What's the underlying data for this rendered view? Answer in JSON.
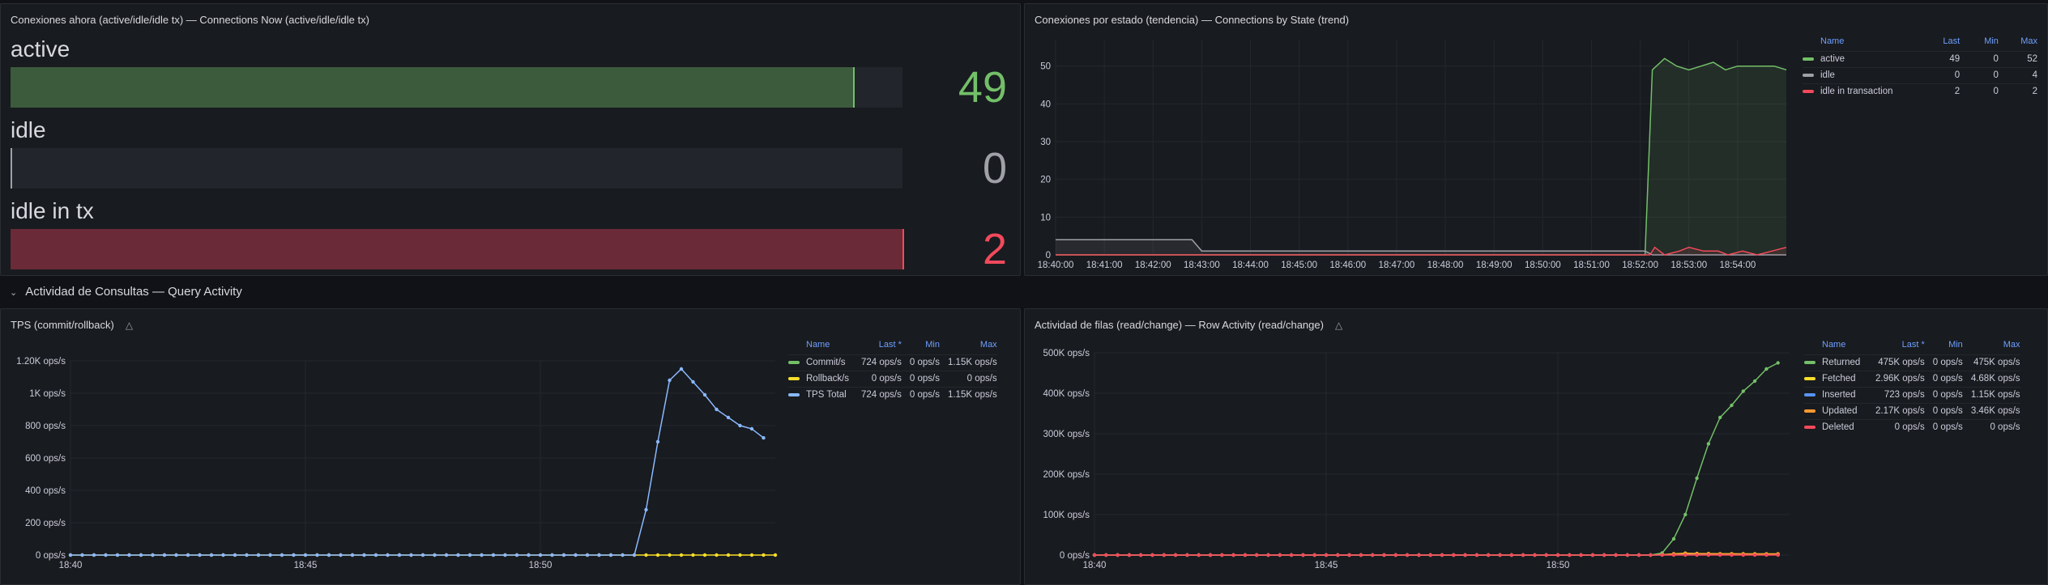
{
  "panels": {
    "now": {
      "title": "Conexiones ahora (active/idle/idle tx) — Connections Now (active/idle/idle tx)",
      "gauges": [
        {
          "label": "active",
          "value": "49",
          "fraction": 0.945,
          "color": "#73bf69",
          "fill": "#3c5b3d"
        },
        {
          "label": "idle",
          "value": "0",
          "fraction": 0.0,
          "color": "#9fa0a8",
          "fill": "#3a3d44"
        },
        {
          "label": "idle in tx",
          "value": "2",
          "fraction": 1.0,
          "color": "#f2495c",
          "fill": "#6a2a37"
        }
      ]
    },
    "state": {
      "title": "Conexiones por estado (tendencia) — Connections by State (trend)",
      "legend": {
        "headers": [
          "Name",
          "Last",
          "Min",
          "Max"
        ],
        "rows": [
          {
            "name": "active",
            "color": "#73bf69",
            "last": "49",
            "min": "0",
            "max": "52"
          },
          {
            "name": "idle",
            "color": "#9fa0a8",
            "last": "0",
            "min": "0",
            "max": "4"
          },
          {
            "name": "idle in transaction",
            "color": "#f2495c",
            "last": "2",
            "min": "0",
            "max": "2"
          }
        ]
      }
    },
    "section": {
      "title": "Actividad de Consultas — Query Activity"
    },
    "tps": {
      "title": "TPS (commit/rollback)",
      "warn_icon": "warning-triangle-icon",
      "legend": {
        "headers": [
          "Name",
          "Last *",
          "Min",
          "Max"
        ],
        "rows": [
          {
            "name": "Commit/s",
            "color": "#73bf69",
            "last": "724 ops/s",
            "min": "0 ops/s",
            "max": "1.15K ops/s"
          },
          {
            "name": "Rollback/s",
            "color": "#fade2a",
            "last": "0 ops/s",
            "min": "0 ops/s",
            "max": "0 ops/s"
          },
          {
            "name": "TPS Total",
            "color": "#8ab8ff",
            "last": "724 ops/s",
            "min": "0 ops/s",
            "max": "1.15K ops/s"
          }
        ]
      }
    },
    "rows": {
      "title": "Actividad de filas (read/change) — Row Activity (read/change)",
      "warn_icon": "warning-triangle-icon",
      "legend": {
        "headers": [
          "Name",
          "Last *",
          "Min",
          "Max"
        ],
        "rows": [
          {
            "name": "Returned",
            "color": "#73bf69",
            "last": "475K ops/s",
            "min": "0 ops/s",
            "max": "475K ops/s"
          },
          {
            "name": "Fetched",
            "color": "#fade2a",
            "last": "2.96K ops/s",
            "min": "0 ops/s",
            "max": "4.68K ops/s"
          },
          {
            "name": "Inserted",
            "color": "#5794f2",
            "last": "723 ops/s",
            "min": "0 ops/s",
            "max": "1.15K ops/s"
          },
          {
            "name": "Updated",
            "color": "#ff9830",
            "last": "2.17K ops/s",
            "min": "0 ops/s",
            "max": "3.46K ops/s"
          },
          {
            "name": "Deleted",
            "color": "#f2495c",
            "last": "0 ops/s",
            "min": "0 ops/s",
            "max": "0 ops/s"
          }
        ]
      }
    }
  },
  "chart_data": [
    {
      "type": "area",
      "title": "Conexiones por estado (tendencia) — Connections by State (trend)",
      "x_ticks": [
        "18:40:00",
        "18:41:00",
        "18:42:00",
        "18:43:00",
        "18:44:00",
        "18:45:00",
        "18:46:00",
        "18:47:00",
        "18:48:00",
        "18:49:00",
        "18:50:00",
        "18:51:00",
        "18:52:00",
        "18:53:00",
        "18:54:00"
      ],
      "y_ticks": [
        "0",
        "10",
        "20",
        "30",
        "40",
        "50"
      ],
      "xlim": [
        0,
        15
      ],
      "ylim": [
        0,
        57
      ],
      "grid": true,
      "series": [
        {
          "name": "active",
          "color": "#73bf69",
          "x": [
            0,
            12.1,
            12.25,
            12.5,
            12.75,
            13,
            13.25,
            13.5,
            13.75,
            14,
            14.25,
            14.5,
            14.75,
            15
          ],
          "values": [
            0,
            0,
            49,
            52,
            50,
            49,
            50,
            51,
            49,
            50,
            50,
            50,
            50,
            49
          ]
        },
        {
          "name": "idle",
          "color": "#9fa0a8",
          "x": [
            0,
            2.8,
            3.0,
            12.1,
            12.25,
            15
          ],
          "values": [
            4,
            4,
            1,
            1,
            0,
            0
          ]
        },
        {
          "name": "idle in transaction",
          "color": "#f2495c",
          "x": [
            0,
            12.2,
            12.3,
            12.5,
            12.8,
            13,
            13.3,
            13.6,
            13.8,
            14.1,
            14.4,
            14.7,
            15
          ],
          "values": [
            0,
            0,
            2,
            0,
            1,
            2,
            1,
            1,
            0,
            1,
            0,
            1,
            2
          ]
        }
      ]
    },
    {
      "type": "line",
      "title": "TPS (commit/rollback)",
      "x_ticks": [
        "18:40",
        "18:45",
        "18:50"
      ],
      "x_tick_minutes": [
        0,
        5,
        10
      ],
      "y_ticks": [
        "0 ops/s",
        "200 ops/s",
        "400 ops/s",
        "600 ops/s",
        "800 ops/s",
        "1K ops/s",
        "1.20K ops/s"
      ],
      "xlim": [
        0,
        15
      ],
      "ylim": [
        0,
        1200
      ],
      "grid": true,
      "series": [
        {
          "name": "Rollback/s",
          "color": "#fade2a",
          "x_start": 0,
          "x_step": 0.25,
          "values": [
            0,
            0,
            0,
            0,
            0,
            0,
            0,
            0,
            0,
            0,
            0,
            0,
            0,
            0,
            0,
            0,
            0,
            0,
            0,
            0,
            0,
            0,
            0,
            0,
            0,
            0,
            0,
            0,
            0,
            0,
            0,
            0,
            0,
            0,
            0,
            0,
            0,
            0,
            0,
            0,
            0,
            0,
            0,
            0,
            0,
            0,
            0,
            0,
            0,
            0,
            0,
            0,
            0,
            0,
            0,
            0,
            0,
            0,
            0,
            0,
            0
          ]
        },
        {
          "name": "TPS Total",
          "color": "#8ab8ff",
          "x_start": 0,
          "x_step": 0.25,
          "values": [
            0,
            0,
            0,
            0,
            0,
            0,
            0,
            0,
            0,
            0,
            0,
            0,
            0,
            0,
            0,
            0,
            0,
            0,
            0,
            0,
            0,
            0,
            0,
            0,
            0,
            0,
            0,
            0,
            0,
            0,
            0,
            0,
            0,
            0,
            0,
            0,
            0,
            0,
            0,
            0,
            0,
            0,
            0,
            0,
            0,
            0,
            0,
            0,
            0,
            280,
            700,
            1080,
            1150,
            1070,
            990,
            900,
            850,
            800,
            780,
            724
          ]
        }
      ]
    },
    {
      "type": "line",
      "title": "Actividad de filas (read/change) — Row Activity (read/change)",
      "x_ticks": [
        "18:40",
        "18:45",
        "18:50"
      ],
      "x_tick_minutes": [
        0,
        5,
        10
      ],
      "y_ticks": [
        "0 ops/s",
        "100K ops/s",
        "200K ops/s",
        "300K ops/s",
        "400K ops/s",
        "500K ops/s"
      ],
      "xlim": [
        0,
        15
      ],
      "ylim": [
        0,
        500000
      ],
      "grid": true,
      "series": [
        {
          "name": "Returned",
          "color": "#73bf69",
          "x_start": 0,
          "x_step": 0.25,
          "values": [
            0,
            0,
            0,
            0,
            0,
            0,
            0,
            0,
            0,
            0,
            0,
            0,
            0,
            0,
            0,
            0,
            0,
            0,
            0,
            0,
            0,
            0,
            0,
            0,
            0,
            0,
            0,
            0,
            0,
            0,
            0,
            0,
            0,
            0,
            0,
            0,
            0,
            0,
            0,
            0,
            0,
            0,
            0,
            0,
            0,
            0,
            0,
            0,
            0,
            5000,
            40000,
            100000,
            190000,
            275000,
            340000,
            370000,
            405000,
            430000,
            460000,
            475000
          ]
        },
        {
          "name": "Fetched",
          "color": "#fade2a",
          "x_start": 0,
          "x_step": 0.25,
          "values": [
            0,
            0,
            0,
            0,
            0,
            0,
            0,
            0,
            0,
            0,
            0,
            0,
            0,
            0,
            0,
            0,
            0,
            0,
            0,
            0,
            0,
            0,
            0,
            0,
            0,
            0,
            0,
            0,
            0,
            0,
            0,
            0,
            0,
            0,
            0,
            0,
            0,
            0,
            0,
            0,
            0,
            0,
            0,
            0,
            0,
            0,
            0,
            0,
            0,
            1000,
            3000,
            4680,
            3900,
            3500,
            3200,
            3100,
            3000,
            2990,
            2970,
            2960
          ]
        },
        {
          "name": "Inserted",
          "color": "#5794f2",
          "x_start": 0,
          "x_step": 0.25,
          "values": [
            0,
            0,
            0,
            0,
            0,
            0,
            0,
            0,
            0,
            0,
            0,
            0,
            0,
            0,
            0,
            0,
            0,
            0,
            0,
            0,
            0,
            0,
            0,
            0,
            0,
            0,
            0,
            0,
            0,
            0,
            0,
            0,
            0,
            0,
            0,
            0,
            0,
            0,
            0,
            0,
            0,
            0,
            0,
            0,
            0,
            0,
            0,
            0,
            0,
            300,
            700,
            1150,
            1070,
            990,
            900,
            850,
            800,
            780,
            750,
            723
          ]
        },
        {
          "name": "Updated",
          "color": "#ff9830",
          "x_start": 0,
          "x_step": 0.25,
          "values": [
            0,
            0,
            0,
            0,
            0,
            0,
            0,
            0,
            0,
            0,
            0,
            0,
            0,
            0,
            0,
            0,
            0,
            0,
            0,
            0,
            0,
            0,
            0,
            0,
            0,
            0,
            0,
            0,
            0,
            0,
            0,
            0,
            0,
            0,
            0,
            0,
            0,
            0,
            0,
            0,
            0,
            0,
            0,
            0,
            0,
            0,
            0,
            0,
            0,
            800,
            2100,
            3460,
            3200,
            3000,
            2800,
            2600,
            2400,
            2300,
            2200,
            2170
          ]
        },
        {
          "name": "Deleted",
          "color": "#f2495c",
          "x_start": 0,
          "x_step": 0.25,
          "values": [
            0,
            0,
            0,
            0,
            0,
            0,
            0,
            0,
            0,
            0,
            0,
            0,
            0,
            0,
            0,
            0,
            0,
            0,
            0,
            0,
            0,
            0,
            0,
            0,
            0,
            0,
            0,
            0,
            0,
            0,
            0,
            0,
            0,
            0,
            0,
            0,
            0,
            0,
            0,
            0,
            0,
            0,
            0,
            0,
            0,
            0,
            0,
            0,
            0,
            0,
            0,
            0,
            0,
            0,
            0,
            0,
            0,
            0,
            0,
            0
          ]
        }
      ]
    }
  ]
}
